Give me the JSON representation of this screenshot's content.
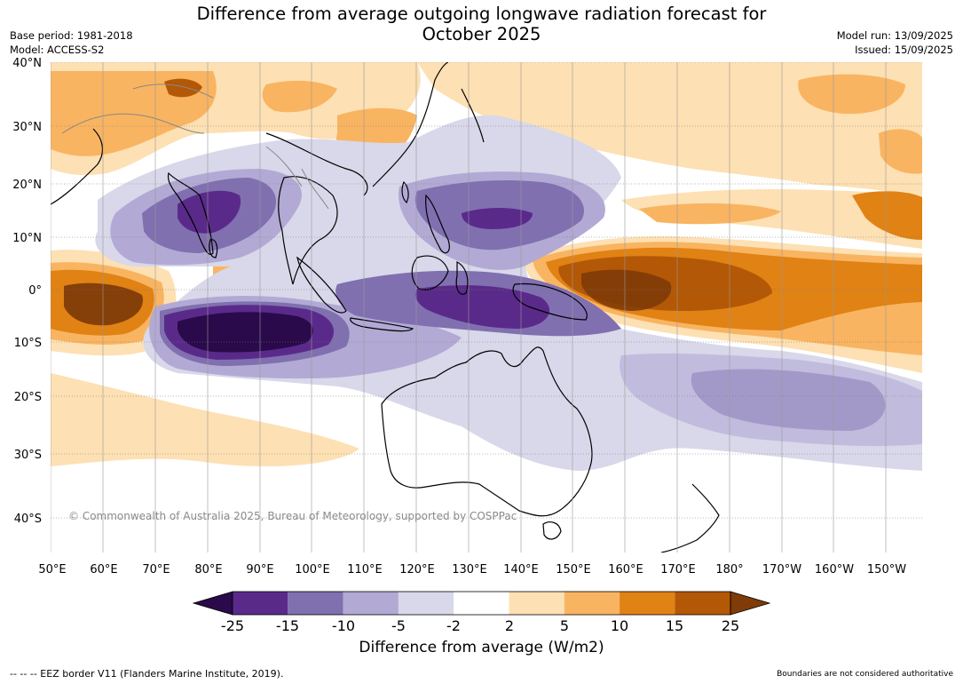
{
  "title_line1": "Difference from average outgoing longwave radiation forecast for",
  "title_line2": "October 2025",
  "meta_left": {
    "base_period": "Base period: 1981-2018",
    "model": "Model: ACCESS-S2"
  },
  "meta_right": {
    "model_run": "Model run: 13/09/2025",
    "issued": "Issued: 15/09/2025"
  },
  "lat_labels": [
    "40°N",
    "30°N",
    "20°N",
    "10°N",
    "0°",
    "10°S",
    "20°S",
    "30°S",
    "40°S"
  ],
  "lon_labels": [
    "50°E",
    "60°E",
    "70°E",
    "80°E",
    "90°E",
    "100°E",
    "110°E",
    "120°E",
    "130°E",
    "140°E",
    "150°E",
    "160°E",
    "170°E",
    "180°",
    "170°W",
    "160°W",
    "150°W"
  ],
  "copyright": "© Commonwealth of Australia 2025, Bureau of Meteorology, supported by COSPPac",
  "colorbar": {
    "ticks": [
      "-25",
      "-15",
      "-10",
      "-5",
      "-2",
      "2",
      "5",
      "10",
      "15",
      "25"
    ],
    "colors": [
      "#2a0a4a",
      "#5a2a8a",
      "#8070b0",
      "#b2aad4",
      "#d8d8ea",
      "#ffffff",
      "#fde0b3",
      "#f9b461",
      "#e08214",
      "#b35806",
      "#7f3b08"
    ],
    "label": "Difference from average (W/m2)"
  },
  "footer_left": "--  --  -- EEZ border V11 (Flanders Marine Institute, 2019).",
  "footer_right": "Boundaries are not considered authoritative"
}
